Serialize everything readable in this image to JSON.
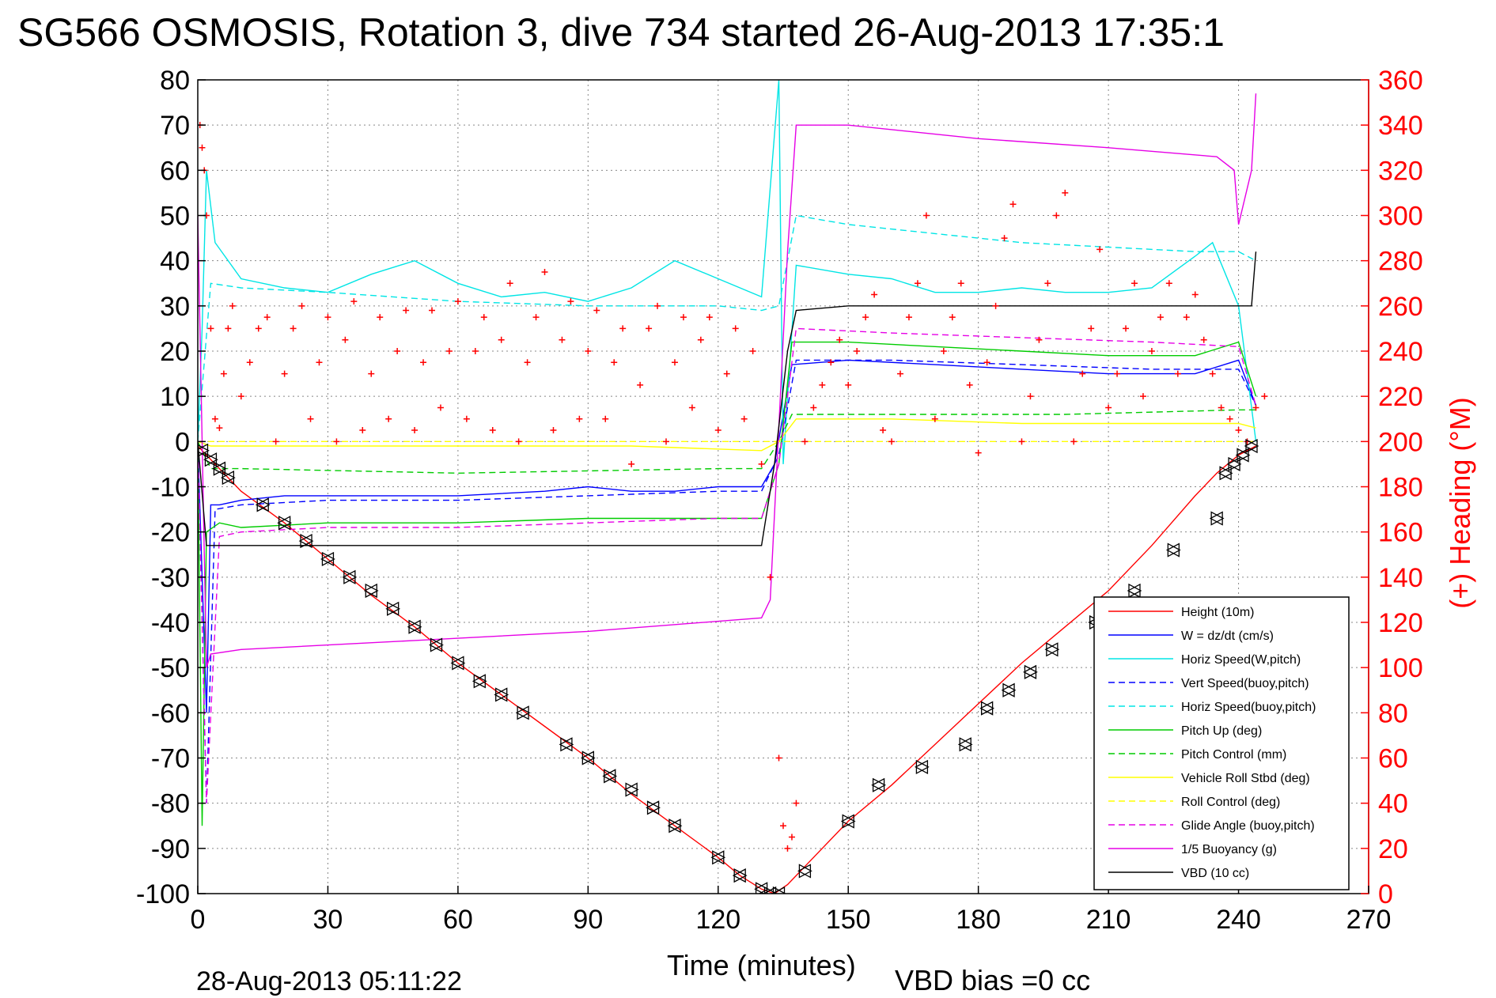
{
  "chart_data": {
    "type": "line",
    "title": "SG566 OSMOSIS, Rotation 3, dive 734 started 26-Aug-2013 17:35:1",
    "xlabel": "Time (minutes)",
    "ylabel_right": "(+) Heading (°M)",
    "footer_left": "28-Aug-2013 05:11:22",
    "footer_right": "VBD bias =0 cc",
    "xlim": [
      0,
      270
    ],
    "ylim": [
      -100,
      80
    ],
    "ylim_right": [
      0,
      360
    ],
    "xticks": [
      "0",
      "30",
      "60",
      "90",
      "120",
      "150",
      "180",
      "210",
      "240",
      "270"
    ],
    "yticks": [
      "80",
      "70",
      "60",
      "50",
      "40",
      "30",
      "20",
      "10",
      "0",
      "-10",
      "-20",
      "-30",
      "-40",
      "-50",
      "-60",
      "-70",
      "-80",
      "-90",
      "-100"
    ],
    "yticks_right": [
      "360",
      "340",
      "320",
      "300",
      "280",
      "260",
      "240",
      "220",
      "200",
      "180",
      "160",
      "140",
      "120",
      "100",
      "80",
      "60",
      "40",
      "20",
      "0"
    ],
    "grid": true,
    "legend_position": "lower-right",
    "series": [
      {
        "name": "Height (10m)",
        "color": "#ff0000",
        "dash": "solid",
        "x": [
          0,
          2,
          10,
          20,
          30,
          40,
          50,
          60,
          70,
          80,
          90,
          100,
          110,
          120,
          125,
          130,
          133,
          136,
          140,
          150,
          160,
          170,
          180,
          190,
          200,
          210,
          220,
          230,
          235,
          240,
          244
        ],
        "y": [
          -1,
          -3,
          -11,
          -18,
          -26,
          -34,
          -41,
          -49,
          -56,
          -63,
          -70,
          -78,
          -85,
          -92,
          -96,
          -99,
          -100,
          -98,
          -94,
          -84,
          -76,
          -67,
          -58,
          -49,
          -41,
          -33,
          -23,
          -12,
          -7,
          -3,
          -1
        ]
      },
      {
        "name": "W = dz/dt (cm/s)",
        "color": "#0000ff",
        "dash": "solid",
        "x": [
          0,
          2,
          3,
          5,
          10,
          20,
          40,
          60,
          80,
          90,
          100,
          110,
          120,
          130,
          133,
          137,
          150,
          170,
          190,
          210,
          230,
          240,
          244
        ],
        "y": [
          0,
          -60,
          -14,
          -14,
          -13,
          -12,
          -12,
          -12,
          -11,
          -10,
          -11,
          -11,
          -10,
          -10,
          -5,
          17,
          18,
          17,
          16,
          15,
          15,
          18,
          8
        ]
      },
      {
        "name": "Horiz Speed(W,pitch)",
        "color": "#00e5e5",
        "dash": "solid",
        "x": [
          0,
          1,
          2,
          4,
          10,
          20,
          30,
          40,
          50,
          60,
          70,
          80,
          90,
          100,
          110,
          120,
          130,
          134,
          135,
          138,
          150,
          160,
          170,
          180,
          190,
          200,
          210,
          220,
          230,
          234,
          240,
          244
        ],
        "y": [
          0,
          25,
          60,
          44,
          36,
          34,
          33,
          37,
          40,
          35,
          32,
          33,
          31,
          34,
          40,
          36,
          32,
          80,
          -5,
          39,
          37,
          36,
          33,
          33,
          34,
          33,
          33,
          34,
          41,
          44,
          30,
          0
        ]
      },
      {
        "name": "Vert Speed(buoy,pitch)",
        "color": "#0000ff",
        "dash": "dash",
        "x": [
          0,
          2,
          4,
          10,
          30,
          60,
          90,
          120,
          130,
          134,
          138,
          160,
          190,
          220,
          240,
          244
        ],
        "y": [
          0,
          -80,
          -15,
          -14,
          -13,
          -13,
          -12,
          -11,
          -11,
          -3,
          18,
          18,
          17,
          16,
          16,
          8
        ]
      },
      {
        "name": "Horiz Speed(buoy,pitch)",
        "color": "#00e5e5",
        "dash": "dash",
        "x": [
          0,
          3,
          10,
          30,
          60,
          90,
          120,
          130,
          134,
          138,
          150,
          170,
          190,
          210,
          230,
          240,
          244
        ],
        "y": [
          0,
          35,
          34,
          33,
          31,
          30,
          30,
          29,
          30,
          50,
          48,
          46,
          44,
          43,
          42,
          42,
          40
        ]
      },
      {
        "name": "Pitch Up (deg)",
        "color": "#00cc00",
        "dash": "solid",
        "x": [
          0,
          1,
          2,
          5,
          10,
          30,
          60,
          90,
          120,
          130,
          134,
          137,
          150,
          170,
          190,
          210,
          230,
          240,
          244
        ],
        "y": [
          0,
          -85,
          -20,
          -18,
          -19,
          -18,
          -18,
          -17,
          -17,
          -17,
          -5,
          22,
          22,
          21,
          20,
          19,
          19,
          22,
          10
        ]
      },
      {
        "name": "Pitch Control (mm)",
        "color": "#00cc00",
        "dash": "dash",
        "x": [
          0,
          3,
          10,
          60,
          120,
          130,
          134,
          137,
          160,
          200,
          240,
          244
        ],
        "y": [
          0,
          -6,
          -6,
          -7,
          -6,
          -6,
          0,
          6,
          6,
          6,
          7,
          7
        ]
      },
      {
        "name": "Vehicle Roll Stbd (deg)",
        "color": "#ffff00",
        "dash": "solid",
        "x": [
          0,
          3,
          10,
          40,
          70,
          100,
          130,
          134,
          138,
          160,
          190,
          220,
          240,
          244
        ],
        "y": [
          0,
          -1,
          -1,
          -1,
          -1,
          -1,
          -2,
          0,
          5,
          5,
          4,
          4,
          4,
          3
        ]
      },
      {
        "name": "Roll Control (deg)",
        "color": "#ffff00",
        "dash": "dash",
        "x": [
          0,
          3,
          60,
          120,
          130,
          134,
          137,
          160,
          200,
          240,
          244
        ],
        "y": [
          0,
          0,
          0,
          0,
          0,
          0,
          0,
          0,
          0,
          0,
          0
        ]
      },
      {
        "name": "Glide Angle (buoy,pitch)",
        "color": "#e600e6",
        "dash": "dash",
        "x": [
          0,
          2,
          5,
          10,
          30,
          60,
          90,
          120,
          130,
          134,
          138,
          160,
          190,
          220,
          240,
          244
        ],
        "y": [
          0,
          -80,
          -21,
          -20,
          -19,
          -19,
          -18,
          -17,
          -17,
          -5,
          25,
          24,
          23,
          22,
          21,
          8
        ]
      },
      {
        "name": "1/5 Buoyancy (g)",
        "color": "#e600e6",
        "dash": "solid",
        "x": [
          0,
          2,
          3,
          10,
          50,
          90,
          130,
          132,
          136,
          138,
          150,
          180,
          210,
          235,
          239,
          240,
          243,
          244
        ],
        "y": [
          50,
          -50,
          -47,
          -46,
          -44,
          -42,
          -39,
          -35,
          42,
          70,
          70,
          67,
          65,
          63,
          60,
          48,
          60,
          77
        ]
      },
      {
        "name": "VBD (10 cc)",
        "color": "#000000",
        "dash": "solid",
        "x": [
          0,
          2,
          3,
          30,
          60,
          90,
          120,
          130,
          133,
          136,
          138,
          150,
          180,
          210,
          240,
          243,
          244
        ],
        "y": [
          0,
          -23,
          -23,
          -23,
          -23,
          -23,
          -23,
          -23,
          -5,
          20,
          29,
          30,
          30,
          30,
          30,
          30,
          42
        ]
      }
    ],
    "heading_markers": {
      "name": "(+) Heading",
      "color": "#ff0000",
      "axis": "right",
      "x": [
        0.5,
        1,
        1.5,
        2,
        3,
        4,
        5,
        6,
        7,
        8,
        10,
        12,
        14,
        16,
        18,
        20,
        22,
        24,
        26,
        28,
        30,
        32,
        34,
        36,
        38,
        40,
        42,
        44,
        46,
        48,
        50,
        52,
        54,
        56,
        58,
        60,
        62,
        64,
        66,
        68,
        70,
        72,
        74,
        76,
        78,
        80,
        82,
        84,
        86,
        88,
        90,
        92,
        94,
        96,
        98,
        100,
        102,
        104,
        106,
        108,
        110,
        112,
        114,
        116,
        118,
        120,
        122,
        124,
        126,
        128,
        130,
        132,
        134,
        135,
        136,
        137,
        138,
        140,
        142,
        144,
        146,
        148,
        150,
        152,
        154,
        156,
        158,
        160,
        162,
        164,
        166,
        168,
        170,
        172,
        174,
        176,
        178,
        180,
        182,
        184,
        186,
        188,
        190,
        192,
        194,
        196,
        198,
        200,
        202,
        204,
        206,
        208,
        210,
        212,
        214,
        216,
        218,
        220,
        222,
        224,
        226,
        228,
        230,
        232,
        234,
        236,
        238,
        240,
        242,
        244,
        246
      ],
      "y": [
        340,
        330,
        320,
        300,
        250,
        210,
        206,
        230,
        250,
        260,
        220,
        235,
        250,
        255,
        200,
        230,
        250,
        260,
        210,
        235,
        255,
        200,
        245,
        262,
        205,
        230,
        255,
        210,
        240,
        258,
        205,
        235,
        258,
        215,
        240,
        262,
        210,
        240,
        255,
        205,
        245,
        270,
        200,
        235,
        255,
        275,
        205,
        245,
        262,
        210,
        240,
        258,
        210,
        235,
        250,
        190,
        225,
        250,
        260,
        200,
        235,
        255,
        215,
        245,
        255,
        205,
        230,
        250,
        210,
        240,
        190,
        140,
        60,
        30,
        20,
        25,
        40,
        200,
        215,
        225,
        235,
        245,
        225,
        240,
        255,
        265,
        205,
        200,
        230,
        255,
        270,
        300,
        210,
        240,
        255,
        270,
        225,
        195,
        235,
        260,
        290,
        305,
        200,
        220,
        245,
        270,
        300,
        310,
        200,
        230,
        250,
        285,
        215,
        230,
        250,
        270,
        220,
        240,
        255,
        270,
        230,
        255,
        265,
        245,
        230,
        215,
        210,
        205,
        200,
        215,
        220
      ]
    },
    "dive_markers": {
      "name": "triangle markers",
      "color": "#000000",
      "x": [
        1,
        3,
        5,
        7,
        15,
        20,
        25,
        30,
        35,
        40,
        45,
        50,
        55,
        60,
        65,
        70,
        75,
        85,
        90,
        95,
        100,
        105,
        110,
        120,
        125,
        130,
        132,
        134,
        140,
        150,
        157,
        167,
        177,
        182,
        187,
        192,
        197,
        207,
        216,
        225,
        235,
        237,
        239,
        241,
        243
      ],
      "y": [
        -2,
        -4,
        -6,
        -8,
        -14,
        -18,
        -22,
        -26,
        -30,
        -33,
        -37,
        -41,
        -45,
        -49,
        -53,
        -56,
        -60,
        -67,
        -70,
        -74,
        -77,
        -81,
        -85,
        -92,
        -96,
        -99,
        -100,
        -100,
        -95,
        -84,
        -76,
        -72,
        -67,
        -59,
        -55,
        -51,
        -46,
        -40,
        -33,
        -24,
        -17,
        -7,
        -5,
        -3,
        -1
      ]
    }
  }
}
